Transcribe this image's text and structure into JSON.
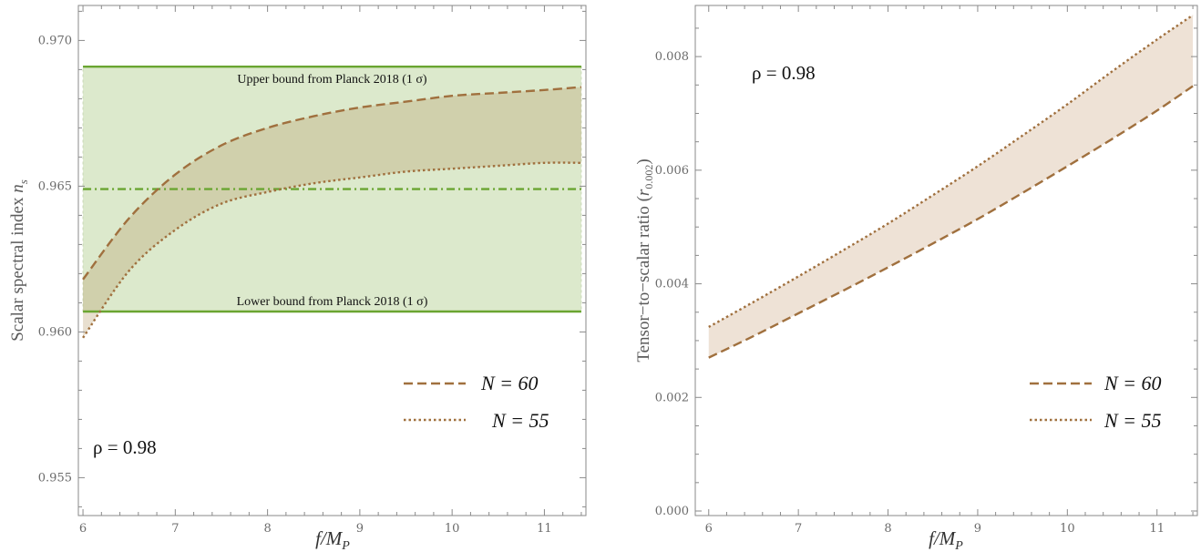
{
  "chart_data": [
    {
      "type": "line",
      "xlabel": "f/M_P",
      "ylabel": "Scalar spectral index n_s",
      "xlim": [
        5.95,
        11.45
      ],
      "ylim": [
        0.9537,
        0.9712
      ],
      "xticks": [
        "6",
        "7",
        "8",
        "9",
        "10",
        "11"
      ],
      "yticks": [
        "0.955",
        "0.960",
        "0.965",
        "0.970"
      ],
      "x": [
        6.0,
        6.5,
        7.0,
        7.5,
        8.0,
        8.5,
        9.0,
        9.5,
        10.0,
        10.5,
        11.0,
        11.4
      ],
      "series": [
        {
          "name": "N = 60",
          "style": "dashed",
          "color": "#a0703e",
          "values": [
            0.9618,
            0.9639,
            0.9654,
            0.9664,
            0.967,
            0.9674,
            0.9677,
            0.9679,
            0.9681,
            0.9682,
            0.9683,
            0.9684
          ]
        },
        {
          "name": "N = 55",
          "style": "dotted",
          "color": "#a0703e",
          "values": [
            0.9598,
            0.9621,
            0.9635,
            0.9644,
            0.9648,
            0.9651,
            0.9653,
            0.9655,
            0.9656,
            0.9657,
            0.9658,
            0.9658
          ]
        }
      ],
      "band_color": "#e8ddd0",
      "planck_band": {
        "upper": 0.9691,
        "lower": 0.9607,
        "center": 0.9649,
        "upper_label": "Upper bound from Planck 2018 (1 σ)",
        "lower_label": "Lower bound from Planck 2018 (1 σ)",
        "line_color": "#6aa531",
        "fill_color": "#dce9cc"
      },
      "annotation": "ρ = 0.98",
      "legend": [
        "N = 60",
        "N = 55"
      ],
      "legend_position": "bottom-right",
      "grid": false
    },
    {
      "type": "line",
      "xlabel": "f/M_P",
      "ylabel": "Tensor−to−scalar ratio (r_0.002)",
      "xlim": [
        5.85,
        11.45
      ],
      "ylim": [
        -8e-05,
        0.0089
      ],
      "xticks": [
        "6",
        "7",
        "8",
        "9",
        "10",
        "11"
      ],
      "yticks": [
        "0.000",
        "0.002",
        "0.004",
        "0.006",
        "0.008"
      ],
      "x": [
        6.0,
        6.5,
        7.0,
        7.5,
        8.0,
        8.5,
        9.0,
        9.5,
        10.0,
        10.5,
        11.0,
        11.4
      ],
      "series": [
        {
          "name": "N = 60",
          "style": "dashed",
          "color": "#a0703e",
          "values": [
            0.0027,
            0.00308,
            0.00348,
            0.00388,
            0.00429,
            0.00471,
            0.00514,
            0.0056,
            0.00607,
            0.00655,
            0.00705,
            0.00748
          ]
        },
        {
          "name": "N = 55",
          "style": "dotted",
          "color": "#a0703e",
          "values": [
            0.00324,
            0.00368,
            0.00413,
            0.00459,
            0.00506,
            0.00556,
            0.00607,
            0.00661,
            0.00716,
            0.00774,
            0.0083,
            0.00873
          ]
        }
      ],
      "band_color": "#eee2d6",
      "annotation": "ρ = 0.98",
      "legend": [
        "N = 60",
        "N = 55"
      ],
      "legend_position": "bottom-right",
      "grid": false
    }
  ]
}
